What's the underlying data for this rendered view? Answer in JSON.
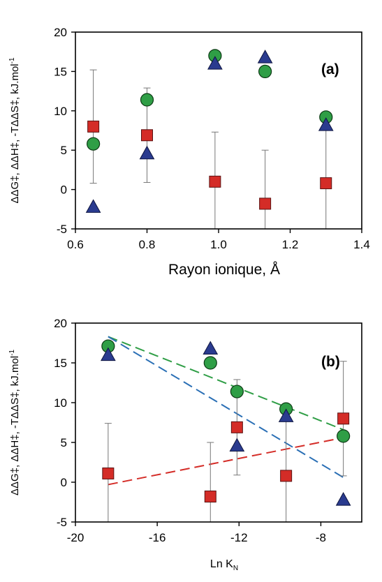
{
  "chart_data": [
    {
      "type": "scatter",
      "panel_label": "(a)",
      "xlabel": "Rayon ionique, Å",
      "ylabel": "ΔΔG‡, ΔΔH‡, -TΔΔS‡, kJ.mol-1",
      "ylabel_sup": "-1",
      "xlim": [
        0.6,
        1.4
      ],
      "ylim": [
        -5,
        20
      ],
      "xticks": [
        "0.6",
        "0.8",
        "1.0",
        "1.2",
        "1.4"
      ],
      "yticks": [
        "-5",
        "0",
        "5",
        "10",
        "15",
        "20"
      ],
      "series": [
        {
          "marker": "square",
          "color": "#d42c27",
          "points": [
            {
              "x": 0.65,
              "y": 8.0,
              "err": 7.2
            },
            {
              "x": 0.8,
              "y": 6.9,
              "err": 6.0
            },
            {
              "x": 0.99,
              "y": 1.0,
              "err": 6.3
            },
            {
              "x": 1.13,
              "y": -1.8,
              "err": 6.8
            },
            {
              "x": 1.3,
              "y": 0.8,
              "err": 7.0
            }
          ]
        },
        {
          "marker": "circle",
          "color": "#2f9e46",
          "points": [
            {
              "x": 0.65,
              "y": 5.8
            },
            {
              "x": 0.8,
              "y": 11.4
            },
            {
              "x": 0.99,
              "y": 17.0
            },
            {
              "x": 1.13,
              "y": 15.0
            },
            {
              "x": 1.3,
              "y": 9.2
            }
          ]
        },
        {
          "marker": "triangle",
          "color": "#2a3b8f",
          "points": [
            {
              "x": 0.65,
              "y": -2.2
            },
            {
              "x": 0.8,
              "y": 4.6
            },
            {
              "x": 0.99,
              "y": 16.0
            },
            {
              "x": 1.13,
              "y": 16.8
            },
            {
              "x": 1.3,
              "y": 8.2
            }
          ]
        }
      ]
    },
    {
      "type": "scatter",
      "panel_label": "(b)",
      "xlabel": "Ln K",
      "xlabel_sub": "N",
      "ylabel": "ΔΔG‡, ΔΔH‡, -TΔΔS‡, kJ.mol-1",
      "ylabel_sup": "-1",
      "xlim": [
        -20,
        -6
      ],
      "ylim": [
        -5,
        20
      ],
      "xticks": [
        "-20",
        "-16",
        "-12",
        "-8"
      ],
      "yticks": [
        "-5",
        "0",
        "5",
        "10",
        "15",
        "20"
      ],
      "series": [
        {
          "marker": "square",
          "color": "#d42c27",
          "points": [
            {
              "x": -18.4,
              "y": 1.1,
              "err": 6.3
            },
            {
              "x": -13.4,
              "y": -1.8,
              "err": 6.8
            },
            {
              "x": -12.1,
              "y": 6.9,
              "err": 6.0
            },
            {
              "x": -9.7,
              "y": 0.8,
              "err": 6.9
            },
            {
              "x": -6.9,
              "y": 8.0,
              "err": 7.2
            }
          ],
          "fit": {
            "x": [
              -18.4,
              -6.9
            ],
            "y": [
              -0.3,
              5.6
            ],
            "color": "#d42c27"
          }
        },
        {
          "marker": "circle",
          "color": "#2f9e46",
          "points": [
            {
              "x": -18.4,
              "y": 17.1
            },
            {
              "x": -13.4,
              "y": 15.0
            },
            {
              "x": -12.1,
              "y": 11.4
            },
            {
              "x": -9.7,
              "y": 9.2
            },
            {
              "x": -6.9,
              "y": 5.8
            }
          ],
          "fit": {
            "x": [
              -18.4,
              -6.9
            ],
            "y": [
              18.3,
              6.6
            ],
            "color": "#2f9e46"
          }
        },
        {
          "marker": "triangle",
          "color": "#2a3b8f",
          "points": [
            {
              "x": -18.4,
              "y": 16.0
            },
            {
              "x": -13.4,
              "y": 16.8
            },
            {
              "x": -12.1,
              "y": 4.6
            },
            {
              "x": -9.7,
              "y": 8.3
            },
            {
              "x": -6.9,
              "y": -2.2
            }
          ],
          "fit": {
            "x": [
              -18.4,
              -6.9
            ],
            "y": [
              18.3,
              0.6
            ],
            "color": "#2a6fb5"
          }
        }
      ]
    }
  ]
}
